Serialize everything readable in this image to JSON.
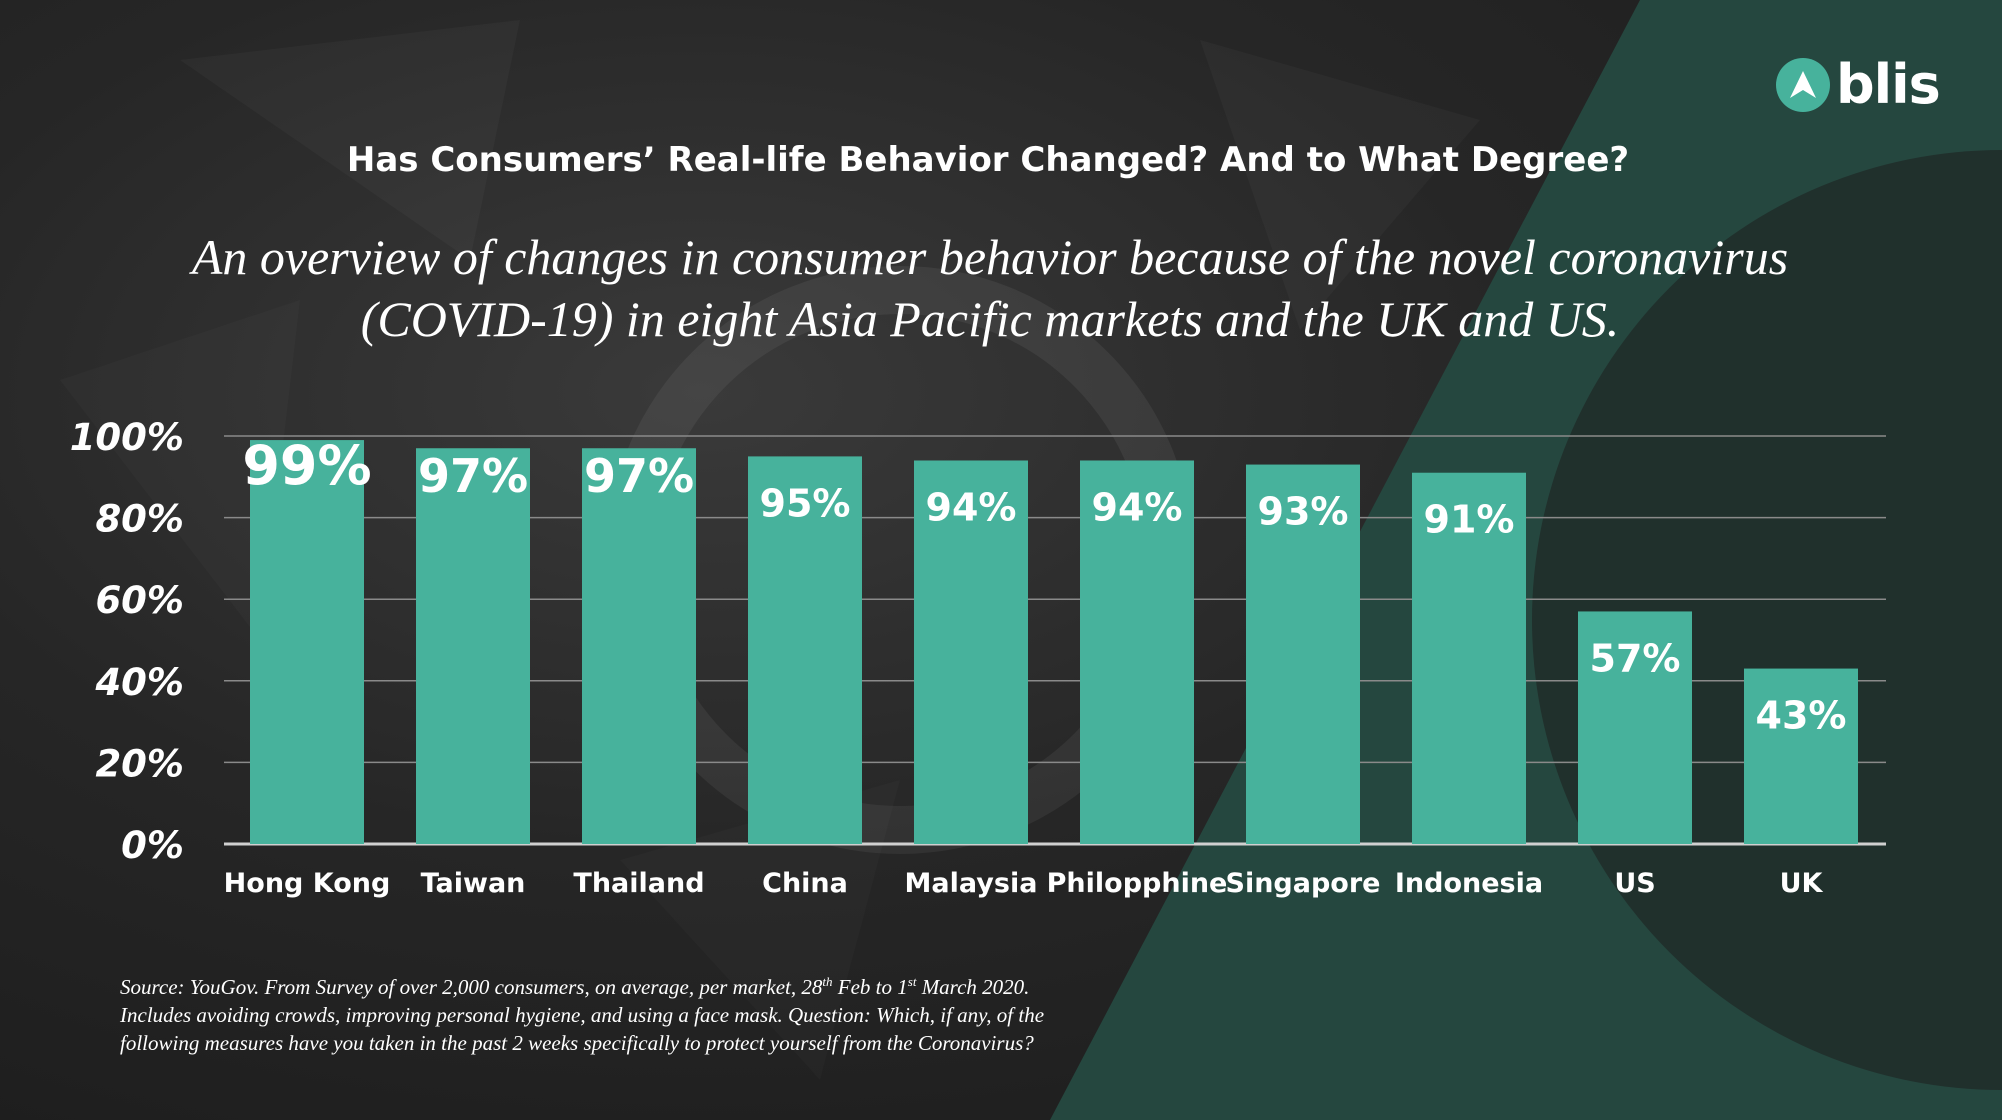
{
  "brand": {
    "logo_text": "blis",
    "logo_icon": "blis-arrow-icon",
    "accent_color": "#47b29c"
  },
  "headline": "Has Consumers’ Real-life Behavior Changed? And to What Degree?",
  "subtitle": {
    "line1": "An overview of changes in consumer behavior because of the novel coronavirus",
    "line2": "(COVID-19) in eight Asia Pacific markets and the UK and US."
  },
  "chart_data": {
    "type": "bar",
    "categories": [
      "Hong Kong",
      "Taiwan",
      "Thailand",
      "China",
      "Malaysia",
      "Philopphine",
      "Singapore",
      "Indonesia",
      "US",
      "UK"
    ],
    "values": [
      99,
      97,
      97,
      95,
      94,
      94,
      93,
      91,
      57,
      43
    ],
    "data_labels": [
      "99%",
      "97%",
      "97%",
      "95%",
      "94%",
      "94%",
      "93%",
      "91%",
      "57%",
      "43%"
    ],
    "y_ticks": [
      "0%",
      "20%",
      "40%",
      "60%",
      "80%",
      "100%"
    ],
    "ylim": [
      0,
      100
    ],
    "grid": true,
    "bar_color": "#47b29c",
    "xlabel": "",
    "ylabel": ""
  },
  "source": {
    "line1_a": "Source: YouGov.  From Survey of over 2,000 consumers, on average, per market, 28",
    "line1_sup1": "th",
    "line1_b": " Feb to 1",
    "line1_sup2": "st",
    "line1_c": " March 2020.",
    "line2": "Includes avoiding crowds, improving personal hygiene, and using a face mask. Question: Which, if any, of the",
    "line3": "following measures have you taken in the past 2 weeks specifically to protect yourself from the Coronavirus?"
  }
}
